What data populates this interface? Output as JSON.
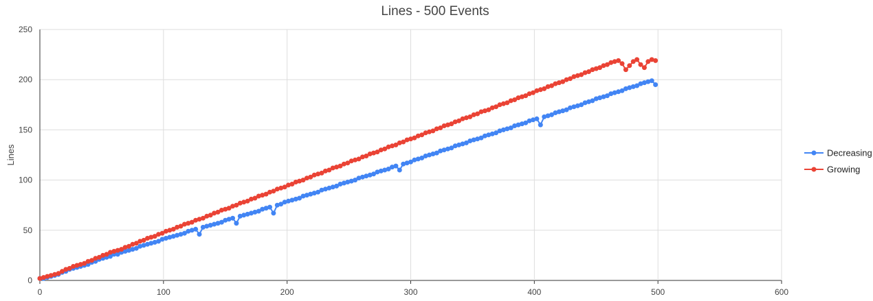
{
  "chart_data": {
    "type": "line",
    "title": "Lines - 500 Events",
    "xlabel": "",
    "ylabel": "Lines",
    "xlim": [
      0,
      600
    ],
    "ylim": [
      0,
      250
    ],
    "x_ticks": [
      0,
      100,
      200,
      300,
      400,
      500,
      600
    ],
    "y_ticks": [
      0,
      50,
      100,
      150,
      200,
      250
    ],
    "grid": true,
    "legend_position": "right",
    "x_step": 3,
    "series": [
      {
        "name": "Decreasing",
        "color": "#4285f4",
        "x": [
          0,
          3,
          6,
          9,
          12,
          15,
          18,
          21,
          24,
          27,
          30,
          33,
          36,
          39,
          42,
          45,
          48,
          51,
          54,
          57,
          60,
          63,
          66,
          69,
          72,
          75,
          78,
          81,
          84,
          87,
          90,
          93,
          96,
          99,
          102,
          105,
          108,
          111,
          114,
          117,
          120,
          123,
          126,
          129,
          132,
          135,
          138,
          141,
          144,
          147,
          150,
          153,
          156,
          159,
          162,
          165,
          168,
          171,
          174,
          177,
          180,
          183,
          186,
          189,
          192,
          195,
          198,
          201,
          204,
          207,
          210,
          213,
          216,
          219,
          222,
          225,
          228,
          231,
          234,
          237,
          240,
          243,
          246,
          249,
          252,
          255,
          258,
          261,
          264,
          267,
          270,
          273,
          276,
          279,
          282,
          285,
          288,
          291,
          294,
          297,
          300,
          303,
          306,
          309,
          312,
          315,
          318,
          321,
          324,
          327,
          330,
          333,
          336,
          339,
          342,
          345,
          348,
          351,
          354,
          357,
          360,
          363,
          366,
          369,
          372,
          375,
          378,
          381,
          384,
          387,
          390,
          393,
          396,
          399,
          402,
          405,
          408,
          411,
          414,
          417,
          420,
          423,
          426,
          429,
          432,
          435,
          438,
          441,
          444,
          447,
          450,
          453,
          456,
          459,
          462,
          465,
          468,
          471,
          474,
          477,
          480,
          483,
          486,
          489,
          492,
          495,
          498
        ],
        "values": [
          2,
          2,
          3,
          4,
          5,
          6,
          8,
          9,
          11,
          12,
          13,
          14,
          15,
          16,
          18,
          19,
          21,
          22,
          23,
          24,
          26,
          26,
          28,
          29,
          30,
          31,
          32,
          34,
          35,
          36,
          37,
          38,
          39,
          41,
          42,
          43,
          44,
          45,
          46,
          47,
          49,
          50,
          51,
          46,
          53,
          54,
          55,
          56,
          57,
          58,
          60,
          61,
          62,
          57,
          64,
          65,
          66,
          67,
          68,
          69,
          71,
          72,
          73,
          67,
          75,
          76,
          78,
          79,
          80,
          81,
          82,
          84,
          85,
          86,
          87,
          88,
          90,
          91,
          92,
          93,
          94,
          96,
          97,
          98,
          99,
          100,
          102,
          103,
          104,
          105,
          106,
          108,
          109,
          110,
          111,
          113,
          114,
          110,
          116,
          117,
          118,
          120,
          121,
          122,
          124,
          125,
          126,
          127,
          129,
          130,
          131,
          132,
          134,
          135,
          136,
          137,
          139,
          140,
          141,
          142,
          144,
          145,
          146,
          147,
          149,
          150,
          151,
          152,
          154,
          155,
          156,
          157,
          159,
          160,
          161,
          155,
          163,
          164,
          165,
          167,
          168,
          169,
          170,
          172,
          173,
          174,
          175,
          177,
          178,
          179,
          181,
          182,
          183,
          184,
          186,
          187,
          188,
          189,
          191,
          192,
          193,
          194,
          196,
          197,
          198,
          199,
          195
        ]
      },
      {
        "name": "Growing",
        "color": "#ea4335",
        "x": [
          0,
          3,
          6,
          9,
          12,
          15,
          18,
          21,
          24,
          27,
          30,
          33,
          36,
          39,
          42,
          45,
          48,
          51,
          54,
          57,
          60,
          63,
          66,
          69,
          72,
          75,
          78,
          81,
          84,
          87,
          90,
          93,
          96,
          99,
          102,
          105,
          108,
          111,
          114,
          117,
          120,
          123,
          126,
          129,
          132,
          135,
          138,
          141,
          144,
          147,
          150,
          153,
          156,
          159,
          162,
          165,
          168,
          171,
          174,
          177,
          180,
          183,
          186,
          189,
          192,
          195,
          198,
          201,
          204,
          207,
          210,
          213,
          216,
          219,
          222,
          225,
          228,
          231,
          234,
          237,
          240,
          243,
          246,
          249,
          252,
          255,
          258,
          261,
          264,
          267,
          270,
          273,
          276,
          279,
          282,
          285,
          288,
          291,
          294,
          297,
          300,
          303,
          306,
          309,
          312,
          315,
          318,
          321,
          324,
          327,
          330,
          333,
          336,
          339,
          342,
          345,
          348,
          351,
          354,
          357,
          360,
          363,
          366,
          369,
          372,
          375,
          378,
          381,
          384,
          387,
          390,
          393,
          396,
          399,
          402,
          405,
          408,
          411,
          414,
          417,
          420,
          423,
          426,
          429,
          432,
          435,
          438,
          441,
          444,
          447,
          450,
          453,
          456,
          459,
          462,
          465,
          468,
          471,
          474,
          477,
          480,
          483,
          486,
          489,
          492,
          495,
          498
        ],
        "values": [
          2,
          3,
          4,
          5,
          6,
          7,
          9,
          11,
          12,
          14,
          15,
          16,
          17,
          19,
          20,
          22,
          23,
          25,
          26,
          28,
          29,
          30,
          31,
          33,
          34,
          36,
          37,
          39,
          40,
          42,
          43,
          44,
          46,
          47,
          49,
          50,
          51,
          53,
          54,
          56,
          57,
          58,
          60,
          61,
          62,
          64,
          65,
          67,
          68,
          70,
          71,
          72,
          74,
          75,
          77,
          78,
          79,
          81,
          82,
          84,
          85,
          86,
          88,
          89,
          91,
          92,
          93,
          95,
          96,
          98,
          99,
          100,
          102,
          103,
          105,
          106,
          107,
          109,
          110,
          112,
          113,
          114,
          116,
          117,
          119,
          120,
          121,
          123,
          124,
          126,
          127,
          128,
          130,
          131,
          133,
          134,
          135,
          137,
          138,
          140,
          141,
          142,
          144,
          145,
          147,
          148,
          149,
          151,
          152,
          154,
          155,
          156,
          158,
          159,
          161,
          162,
          163,
          165,
          166,
          168,
          169,
          170,
          172,
          173,
          175,
          176,
          177,
          179,
          180,
          182,
          183,
          184,
          186,
          187,
          189,
          190,
          191,
          193,
          194,
          196,
          197,
          198,
          200,
          201,
          203,
          204,
          205,
          207,
          208,
          210,
          211,
          212,
          214,
          215,
          217,
          218,
          219,
          216,
          210,
          214,
          218,
          220,
          215,
          212,
          218,
          220,
          219
        ]
      }
    ]
  }
}
